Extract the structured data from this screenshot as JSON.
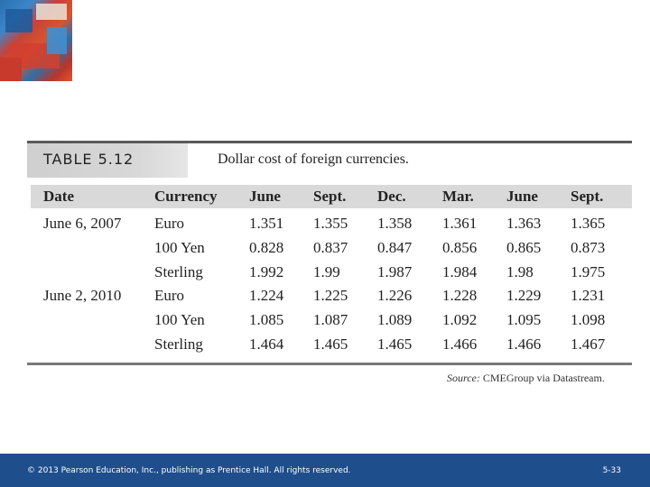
{
  "table": {
    "label": "TABLE 5.12",
    "caption": "Dollar cost of foreign currencies.",
    "headers": [
      "Date",
      "Currency",
      "June",
      "Sept.",
      "Dec.",
      "Mar.",
      "June",
      "Sept."
    ],
    "rows": [
      [
        "June 6, 2007",
        "Euro",
        "1.351",
        "1.355",
        "1.358",
        "1.361",
        "1.363",
        "1.365"
      ],
      [
        "",
        "100 Yen",
        "0.828",
        "0.837",
        "0.847",
        "0.856",
        "0.865",
        "0.873"
      ],
      [
        "",
        "Sterling",
        "1.992",
        "1.99",
        "1.987",
        "1.984",
        "1.98",
        "1.975"
      ],
      [
        "June 2, 2010",
        "Euro",
        "1.224",
        "1.225",
        "1.226",
        "1.228",
        "1.229",
        "1.231"
      ],
      [
        "",
        "100 Yen",
        "1.085",
        "1.087",
        "1.089",
        "1.092",
        "1.095",
        "1.098"
      ],
      [
        "",
        "Sterling",
        "1.464",
        "1.465",
        "1.465",
        "1.466",
        "1.466",
        "1.467"
      ]
    ],
    "source_label": "Source:",
    "source_text": " CMEGroup via Datastream."
  },
  "footer": {
    "copyright": "© 2013 Pearson Education, Inc., publishing as Prentice Hall.  All rights reserved.",
    "page": "5-33"
  },
  "colors": {
    "footer_bg": "#1f4e8c",
    "header_row_bg": "#d9d9d9"
  }
}
